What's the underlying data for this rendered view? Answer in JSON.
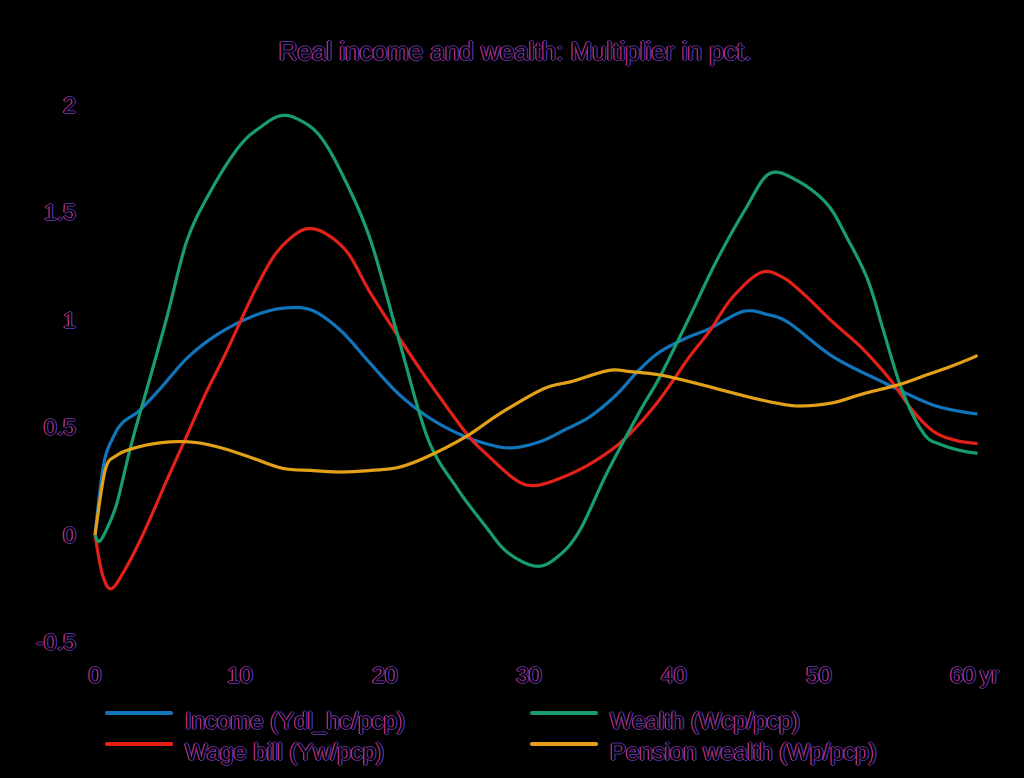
{
  "title": "Real income and wealth: Multiplier in pct.",
  "colors": {
    "background": "#000000",
    "text_fringe_left": "#b02a72",
    "text_fringe_right": "#3d2da4",
    "income": "#1175bb",
    "wage_bill": "#e32119",
    "wealth": "#199d6f",
    "pension_wealth": "#e2a118"
  },
  "axes": {
    "y_ticks": [
      "2",
      "1.5",
      "1",
      "0.5",
      "0",
      "-0.5"
    ],
    "x_ticks": [
      "0",
      "10",
      "20",
      "30",
      "40",
      "50",
      "60"
    ],
    "x_unit": "yr"
  },
  "legend": {
    "income_label": "Income (Ydl_hc/pcp)",
    "wage_bill_label": "Wage bill (Yw/pcp)",
    "wealth_label": "Wealth (Wcp/pcp)",
    "pension_wealth_label": "Pension wealth (Wp/pcp)"
  },
  "chart_data": {
    "type": "line",
    "title": "Real income and wealth: Multiplier in pct.",
    "xlabel": "yr",
    "ylabel": "",
    "xlim": [
      0,
      61
    ],
    "ylim": [
      -0.5,
      2
    ],
    "x_ticks": [
      0,
      10,
      20,
      30,
      40,
      50,
      60
    ],
    "y_ticks": [
      -0.5,
      0,
      0.5,
      1,
      1.5,
      2
    ],
    "grid": false,
    "legend_position": "below",
    "series": [
      {
        "name": "Income (Ydl_hc/pcp)",
        "color_key": "income",
        "color": "#1175bb",
        "points": [
          [
            0,
            0
          ],
          [
            0.6,
            0.33
          ],
          [
            1.3,
            0.46
          ],
          [
            1.94,
            0.525
          ],
          [
            3,
            0.575
          ],
          [
            4.5,
            0.68
          ],
          [
            6.4,
            0.825
          ],
          [
            8.5,
            0.935
          ],
          [
            11,
            1.02
          ],
          [
            13,
            1.055
          ],
          [
            15,
            1.045
          ],
          [
            17,
            0.95
          ],
          [
            19,
            0.8
          ],
          [
            21,
            0.655
          ],
          [
            23,
            0.55
          ],
          [
            25,
            0.475
          ],
          [
            27,
            0.425
          ],
          [
            28.8,
            0.405
          ],
          [
            30.8,
            0.435
          ],
          [
            32.5,
            0.49
          ],
          [
            34.2,
            0.55
          ],
          [
            36,
            0.65
          ],
          [
            37.5,
            0.76
          ],
          [
            39,
            0.85
          ],
          [
            41,
            0.92
          ],
          [
            42.5,
            0.96
          ],
          [
            44.8,
            1.04
          ],
          [
            46.5,
            1.025
          ],
          [
            48,
            0.985
          ],
          [
            51,
            0.83
          ],
          [
            54.5,
            0.71
          ],
          [
            57.9,
            0.605
          ],
          [
            60.5,
            0.567
          ],
          [
            61,
            0.565
          ]
        ]
      },
      {
        "name": "Wage bill (Yw/pcp)",
        "color_key": "wage_bill",
        "color": "#e32119",
        "points": [
          [
            0,
            0
          ],
          [
            0.5,
            -0.18
          ],
          [
            1.1,
            -0.25
          ],
          [
            2,
            -0.17
          ],
          [
            3.3,
            0
          ],
          [
            5,
            0.26
          ],
          [
            6.4,
            0.47
          ],
          [
            7.7,
            0.665
          ],
          [
            9,
            0.84
          ],
          [
            11,
            1.13
          ],
          [
            12.3,
            1.29
          ],
          [
            13.5,
            1.38
          ],
          [
            14.7,
            1.425
          ],
          [
            16,
            1.4
          ],
          [
            17.5,
            1.31
          ],
          [
            19,
            1.13
          ],
          [
            21,
            0.92
          ],
          [
            23,
            0.72
          ],
          [
            25.7,
            0.47
          ],
          [
            27,
            0.38
          ],
          [
            29,
            0.26
          ],
          [
            30.3,
            0.23
          ],
          [
            32,
            0.26
          ],
          [
            34.2,
            0.33
          ],
          [
            36.5,
            0.44
          ],
          [
            38.8,
            0.61
          ],
          [
            41.1,
            0.83
          ],
          [
            42.5,
            0.95
          ],
          [
            44,
            1.1
          ],
          [
            46,
            1.22
          ],
          [
            47.5,
            1.2
          ],
          [
            49,
            1.12
          ],
          [
            51,
            0.99
          ],
          [
            53,
            0.87
          ],
          [
            55,
            0.72
          ],
          [
            56.5,
            0.58
          ],
          [
            58,
            0.48
          ],
          [
            59.5,
            0.44
          ],
          [
            61,
            0.425
          ]
        ]
      },
      {
        "name": "Wealth (Wcp/pcp)",
        "color_key": "wealth",
        "color": "#199d6f",
        "points": [
          [
            0,
            0
          ],
          [
            0.3,
            -0.03
          ],
          [
            0.83,
            0.03
          ],
          [
            1.52,
            0.15
          ],
          [
            2.5,
            0.42
          ],
          [
            3.8,
            0.73
          ],
          [
            5,
            1.02
          ],
          [
            6.36,
            1.37
          ],
          [
            8,
            1.6
          ],
          [
            10,
            1.81
          ],
          [
            11.5,
            1.9
          ],
          [
            12.8,
            1.95
          ],
          [
            14,
            1.935
          ],
          [
            15.5,
            1.86
          ],
          [
            17,
            1.69
          ],
          [
            19,
            1.38
          ],
          [
            21,
            0.91
          ],
          [
            23,
            0.45
          ],
          [
            25,
            0.22
          ],
          [
            27,
            0.04
          ],
          [
            28.5,
            -0.08
          ],
          [
            30.5,
            -0.145
          ],
          [
            32,
            -0.1
          ],
          [
            33.5,
            0.02
          ],
          [
            35.4,
            0.29
          ],
          [
            37.7,
            0.58
          ],
          [
            39,
            0.73
          ],
          [
            41,
            1.0
          ],
          [
            43,
            1.28
          ],
          [
            45,
            1.52
          ],
          [
            46.6,
            1.68
          ],
          [
            48.5,
            1.65
          ],
          [
            50.6,
            1.54
          ],
          [
            52,
            1.38
          ],
          [
            53.4,
            1.19
          ],
          [
            54.5,
            0.95
          ],
          [
            55.8,
            0.67
          ],
          [
            57.3,
            0.47
          ],
          [
            58.5,
            0.42
          ],
          [
            60,
            0.39
          ],
          [
            61,
            0.38
          ]
        ]
      },
      {
        "name": "Pension wealth (Wp/pcp)",
        "color_key": "pension_wealth",
        "color": "#e2a118",
        "points": [
          [
            0,
            0
          ],
          [
            0.7,
            0.3
          ],
          [
            1.5,
            0.37
          ],
          [
            3,
            0.41
          ],
          [
            5.2,
            0.433
          ],
          [
            7,
            0.43
          ],
          [
            9,
            0.4
          ],
          [
            11,
            0.355
          ],
          [
            13,
            0.31
          ],
          [
            15,
            0.3
          ],
          [
            17,
            0.293
          ],
          [
            19,
            0.3
          ],
          [
            21,
            0.315
          ],
          [
            23,
            0.365
          ],
          [
            25.7,
            0.46
          ],
          [
            28,
            0.565
          ],
          [
            31,
            0.68
          ],
          [
            33,
            0.715
          ],
          [
            35.5,
            0.765
          ],
          [
            37,
            0.76
          ],
          [
            39,
            0.745
          ],
          [
            41,
            0.715
          ],
          [
            43,
            0.68
          ],
          [
            45.3,
            0.64
          ],
          [
            47,
            0.615
          ],
          [
            48.7,
            0.6
          ],
          [
            51,
            0.615
          ],
          [
            53,
            0.655
          ],
          [
            55.6,
            0.7
          ],
          [
            57.5,
            0.745
          ],
          [
            59,
            0.78
          ],
          [
            60.5,
            0.82
          ],
          [
            61,
            0.835
          ]
        ]
      }
    ]
  }
}
